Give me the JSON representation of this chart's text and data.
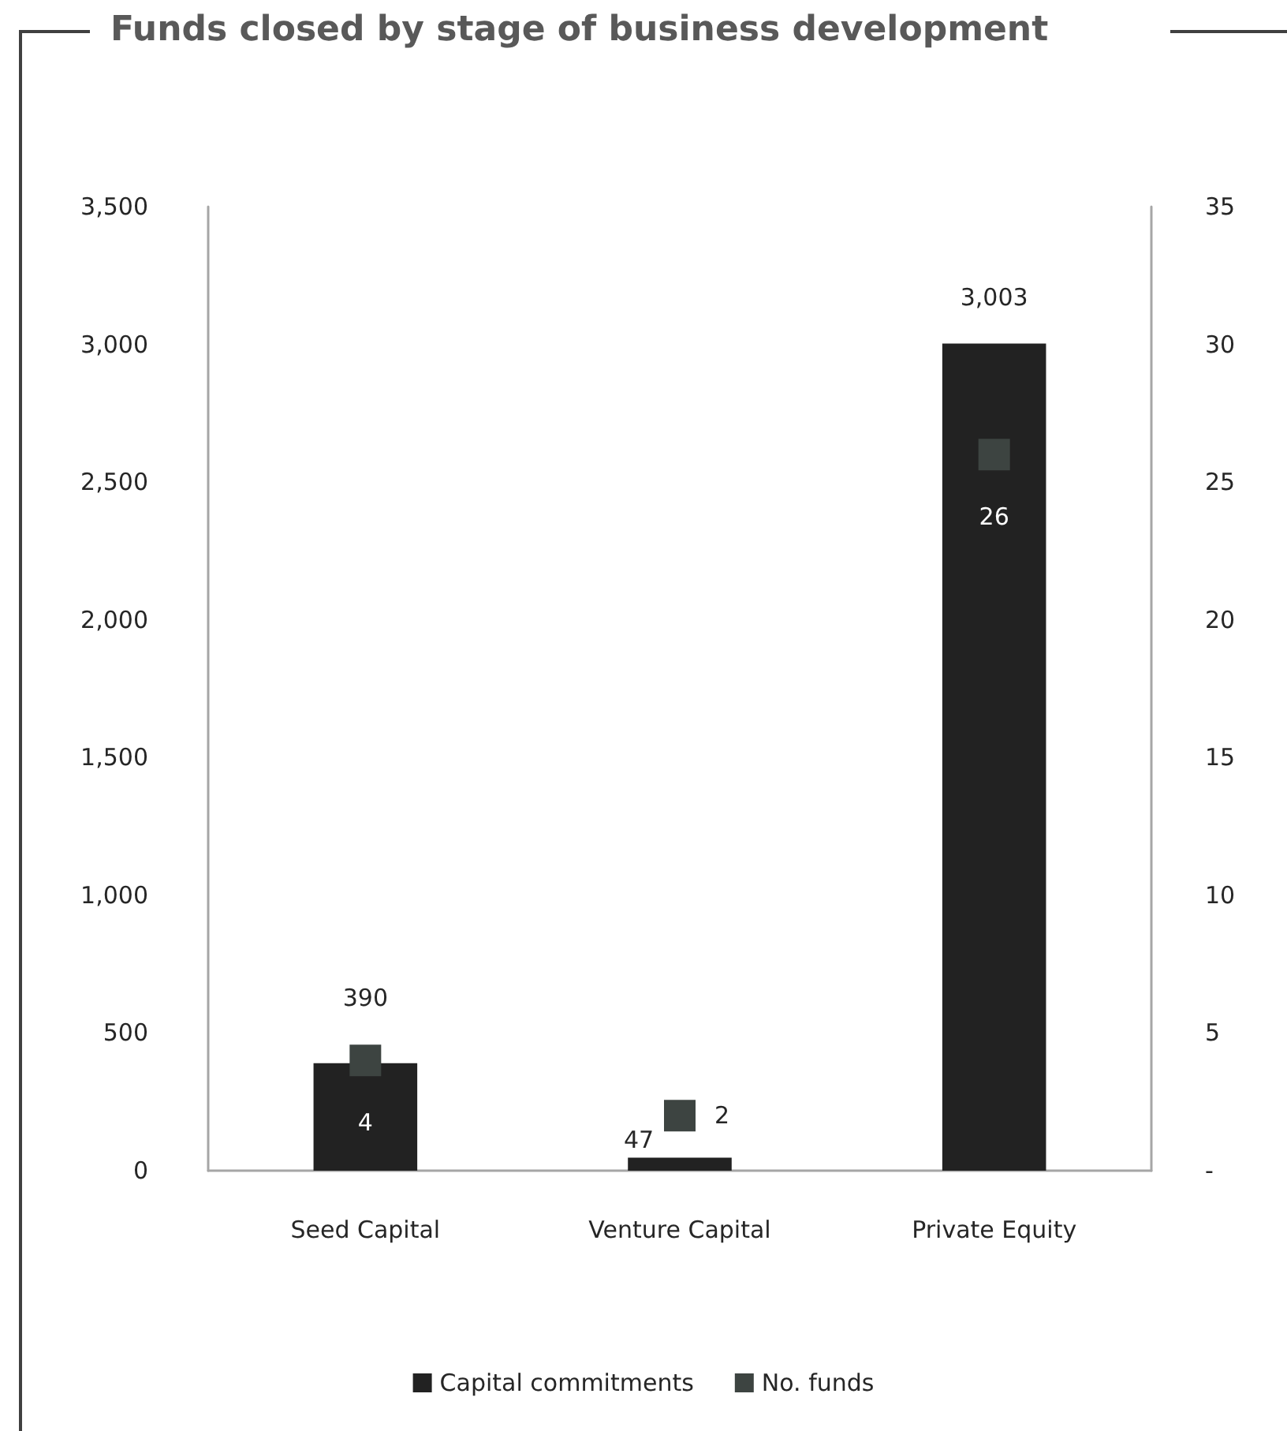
{
  "chart_data": {
    "type": "bar",
    "title": "Funds closed by stage of business development",
    "categories": [
      "Seed Capital",
      "Venture Capital",
      "Private Equity"
    ],
    "series": [
      {
        "name": "Capital commitments",
        "color": "#222222",
        "values": [
          390,
          47,
          3003
        ],
        "value_labels": [
          "390",
          "47",
          "3,003"
        ]
      },
      {
        "name": "No. funds",
        "type": "scatter",
        "axis": "y2",
        "color": "#3d4441",
        "values": [
          4,
          2,
          26
        ],
        "value_labels": [
          "4",
          "2",
          "26"
        ]
      }
    ],
    "ylim": [
      0,
      3500
    ],
    "yticks": [
      0,
      500,
      {
        "value": 1000,
        "label": "1,000"
      },
      {
        "value": 1500,
        "label": "1,500"
      },
      {
        "value": 2000,
        "label": "2,000"
      },
      {
        "value": 2500,
        "label": "2,500"
      },
      {
        "value": 3000,
        "label": "3,000"
      },
      {
        "value": 3500,
        "label": "3,500"
      }
    ],
    "y2lim": [
      0,
      35
    ],
    "y2ticks": [
      {
        "value": 0,
        "label": "-"
      },
      5,
      10,
      15,
      20,
      25,
      30,
      35
    ],
    "legend": "bottom",
    "marker": "square"
  }
}
